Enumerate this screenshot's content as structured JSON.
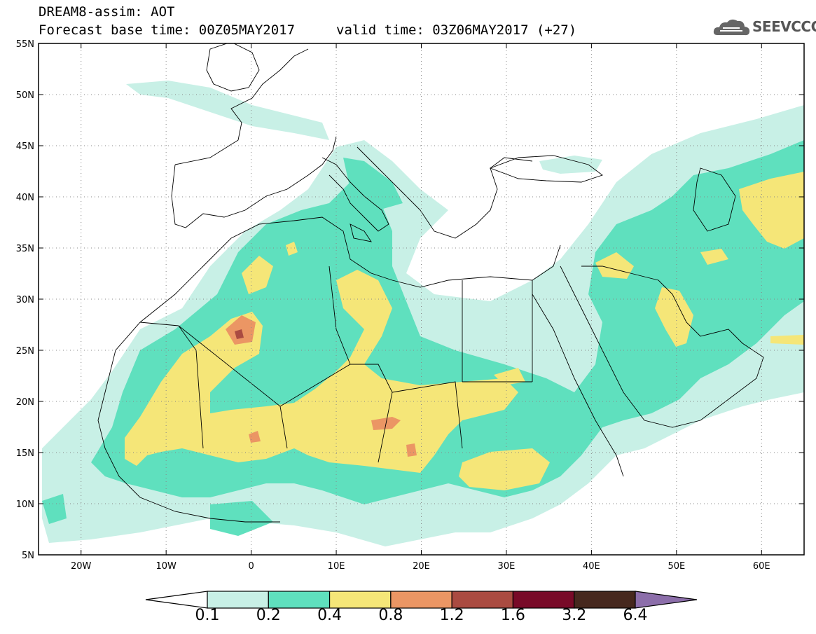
{
  "header": {
    "title_line1": "DREAM8-assim: AOT",
    "title_line2_left": "Forecast base time: 00Z05MAY2017",
    "title_line2_right": "valid time: 03Z06MAY2017 (+27)",
    "logo_text": "SEEVCCC"
  },
  "map": {
    "lon_range": [
      -25,
      65
    ],
    "lat_range": [
      5,
      55
    ],
    "lat_labels": [
      "55N",
      "50N",
      "45N",
      "40N",
      "35N",
      "30N",
      "25N",
      "20N",
      "15N",
      "10N",
      "5N"
    ],
    "lon_labels": [
      "20W",
      "10W",
      "0",
      "10E",
      "20E",
      "30E",
      "40E",
      "50E",
      "60E"
    ]
  },
  "colorbar": {
    "labels": [
      "0.1",
      "0.2",
      "0.4",
      "0.8",
      "1.2",
      "1.6",
      "3.2",
      "6.4"
    ],
    "colors": [
      "#ffffff",
      "#c8f0e6",
      "#5fe0be",
      "#f5e678",
      "#eb9664",
      "#aa4b41",
      "#780a28",
      "#46281e",
      "#8c6eaa"
    ]
  },
  "icons": {
    "logo": "cloud-logo-icon"
  }
}
